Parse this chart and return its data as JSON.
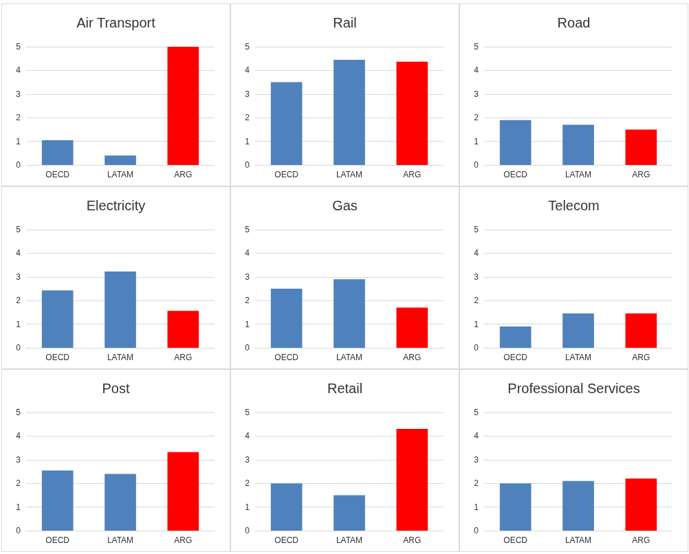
{
  "chart_data": [
    {
      "type": "bar",
      "title": "Air Transport",
      "categories": [
        "OECD",
        "LATAM",
        "ARG"
      ],
      "values": [
        1.05,
        0.4,
        5.0
      ],
      "colors": [
        "#4f81bd",
        "#4f81bd",
        "#ff0000"
      ],
      "ylim": [
        0,
        5
      ],
      "yticks": [
        0,
        1,
        2,
        3,
        4,
        5
      ],
      "grid": "y"
    },
    {
      "type": "bar",
      "title": "Rail",
      "categories": [
        "OECD",
        "LATAM",
        "ARG"
      ],
      "values": [
        3.5,
        4.45,
        4.37
      ],
      "colors": [
        "#4f81bd",
        "#4f81bd",
        "#ff0000"
      ],
      "ylim": [
        0,
        5
      ],
      "yticks": [
        0,
        1,
        2,
        3,
        4,
        5
      ],
      "grid": "y"
    },
    {
      "type": "bar",
      "title": "Road",
      "categories": [
        "OECD",
        "LATAM",
        "ARG"
      ],
      "values": [
        1.9,
        1.7,
        1.5
      ],
      "colors": [
        "#4f81bd",
        "#4f81bd",
        "#ff0000"
      ],
      "ylim": [
        0,
        5
      ],
      "yticks": [
        0,
        1,
        2,
        3,
        4,
        5
      ],
      "grid": "y"
    },
    {
      "type": "bar",
      "title": "Electricity",
      "categories": [
        "OECD",
        "LATAM",
        "ARG"
      ],
      "values": [
        2.43,
        3.23,
        1.56
      ],
      "colors": [
        "#4f81bd",
        "#4f81bd",
        "#ff0000"
      ],
      "ylim": [
        0,
        5
      ],
      "yticks": [
        0,
        1,
        2,
        3,
        4,
        5
      ],
      "grid": "y"
    },
    {
      "type": "bar",
      "title": "Gas",
      "categories": [
        "OECD",
        "LATAM",
        "ARG"
      ],
      "values": [
        2.5,
        2.9,
        1.7
      ],
      "colors": [
        "#4f81bd",
        "#4f81bd",
        "#ff0000"
      ],
      "ylim": [
        0,
        5
      ],
      "yticks": [
        0,
        1,
        2,
        3,
        4,
        5
      ],
      "grid": "y"
    },
    {
      "type": "bar",
      "title": "Telecom",
      "categories": [
        "OECD",
        "LATAM",
        "ARG"
      ],
      "values": [
        0.9,
        1.45,
        1.45
      ],
      "colors": [
        "#4f81bd",
        "#4f81bd",
        "#ff0000"
      ],
      "ylim": [
        0,
        5
      ],
      "yticks": [
        0,
        1,
        2,
        3,
        4,
        5
      ],
      "grid": "y"
    },
    {
      "type": "bar",
      "title": "Post",
      "categories": [
        "OECD",
        "LATAM",
        "ARG"
      ],
      "values": [
        2.54,
        2.4,
        3.32
      ],
      "colors": [
        "#4f81bd",
        "#4f81bd",
        "#ff0000"
      ],
      "ylim": [
        0,
        5
      ],
      "yticks": [
        0,
        1,
        2,
        3,
        4,
        5
      ],
      "grid": "y"
    },
    {
      "type": "bar",
      "title": "Retail",
      "categories": [
        "OECD",
        "LATAM",
        "ARG"
      ],
      "values": [
        2.0,
        1.5,
        4.3
      ],
      "colors": [
        "#4f81bd",
        "#4f81bd",
        "#ff0000"
      ],
      "ylim": [
        0,
        5
      ],
      "yticks": [
        0,
        1,
        2,
        3,
        4,
        5
      ],
      "grid": "y"
    },
    {
      "type": "bar",
      "title": "Professional Services",
      "categories": [
        "OECD",
        "LATAM",
        "ARG"
      ],
      "values": [
        2.0,
        2.1,
        2.2
      ],
      "colors": [
        "#4f81bd",
        "#4f81bd",
        "#ff0000"
      ],
      "ylim": [
        0,
        5
      ],
      "yticks": [
        0,
        1,
        2,
        3,
        4,
        5
      ],
      "grid": "y"
    }
  ]
}
